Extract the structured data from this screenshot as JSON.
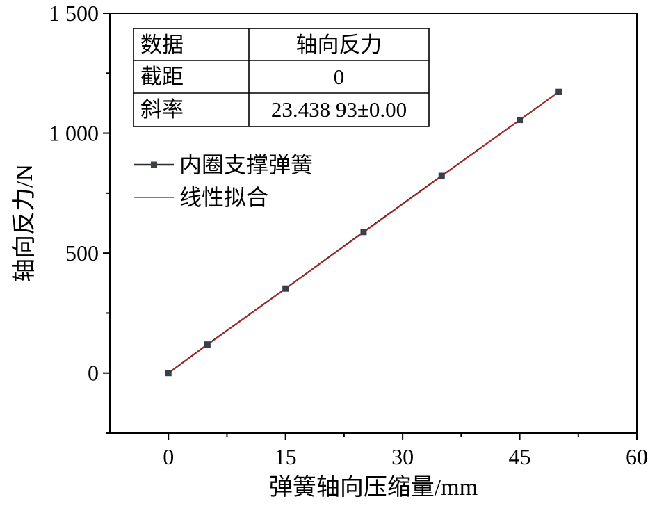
{
  "chart_data": {
    "type": "line",
    "xlabel": "弹簧轴向压缩量/mm",
    "ylabel": "轴向反力/N",
    "xlim": [
      -7.5,
      60
    ],
    "ylim": [
      -250,
      1500
    ],
    "xticks": [
      0,
      15,
      30,
      45,
      60
    ],
    "xtick_labels": [
      "0",
      "15",
      "30",
      "45",
      "60"
    ],
    "yticks": [
      0,
      500,
      1000,
      1500
    ],
    "ytick_labels": [
      "0",
      "500",
      "1 000",
      "1 500"
    ],
    "grid": false,
    "legend_position": "middle-left",
    "series": [
      {
        "name": "内圈支撑弹簧",
        "style": "line-markers",
        "color": "#2b2b2b",
        "marker_color": "#3a3f48",
        "x": [
          0,
          5,
          15,
          25,
          35,
          45,
          50
        ],
        "y": [
          0,
          119,
          352,
          588,
          822,
          1055,
          1172
        ]
      },
      {
        "name": "线性拟合",
        "style": "line",
        "color": "#cc2222",
        "x": [
          0,
          50
        ],
        "y": [
          0,
          1171.95
        ]
      }
    ],
    "fit_table": {
      "rows": [
        [
          "数据",
          "轴向反力"
        ],
        [
          "截距",
          "0"
        ],
        [
          "斜率",
          "23.438 93±0.00"
        ]
      ]
    }
  }
}
